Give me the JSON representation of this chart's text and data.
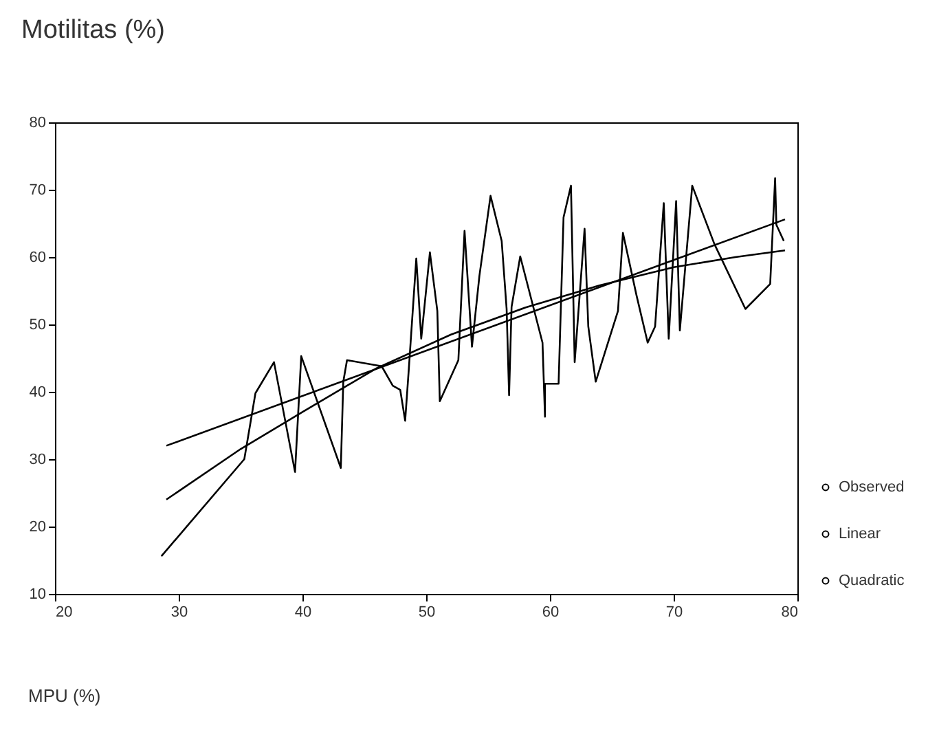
{
  "chart_data": {
    "type": "line",
    "ylabel": "Motilitas (%)",
    "xlabel": "MPU (%)",
    "xlim": [
      20,
      80
    ],
    "ylim": [
      10,
      80
    ],
    "xticks": [
      20,
      30,
      40,
      50,
      60,
      70,
      80
    ],
    "yticks": [
      10,
      20,
      30,
      40,
      50,
      60,
      70,
      80
    ],
    "grid": false,
    "legend": "bottom right",
    "marker": "none",
    "line_style": "solid",
    "series": [
      {
        "name": "Observed",
        "color": "#000000",
        "x": [
          28.6,
          35.3,
          36.2,
          37.7,
          39.4,
          39.9,
          43.1,
          43.3,
          43.6,
          46.4,
          47.3,
          47.9,
          48.3,
          48.6,
          49.2,
          49.6,
          50.3,
          50.9,
          51.1,
          52.6,
          53.1,
          53.7,
          54.3,
          55.2,
          56.1,
          56.5,
          56.7,
          56.9,
          57.6,
          59.4,
          59.6,
          59.6,
          60.7,
          61.1,
          61.7,
          62,
          62.8,
          63.1,
          63.7,
          65.5,
          65.9,
          67,
          67.9,
          68.5,
          69.2,
          69.6,
          70.2,
          70.5,
          71.5,
          73.3,
          75.8,
          77.8,
          78.2,
          78.3,
          78.9
        ],
        "values": [
          15.6,
          30,
          39.8,
          44.4,
          28.1,
          45.3,
          28.7,
          41.5,
          44.7,
          43.8,
          40.9,
          40.3,
          35.7,
          43.5,
          59.8,
          47.9,
          60.7,
          52,
          38.6,
          44.7,
          63.9,
          46.7,
          57.2,
          69.1,
          62.4,
          52.3,
          39.5,
          52.6,
          60.1,
          47.3,
          36.3,
          41.2,
          41.2,
          65.9,
          70.6,
          44.4,
          64.2,
          49.7,
          41.5,
          52,
          63.6,
          54.3,
          47.3,
          49.7,
          68,
          47.9,
          68.3,
          49.1,
          70.6,
          61.9,
          52.3,
          56,
          71.7,
          64.8,
          62.4
        ]
      },
      {
        "name": "Linear",
        "color": "#000000",
        "x": [
          29,
          79
        ],
        "values": [
          32,
          65.6
        ]
      },
      {
        "name": "Quadratic",
        "color": "#000000",
        "x": [
          29,
          35,
          40,
          46,
          52,
          58,
          64,
          70,
          75,
          79
        ],
        "values": [
          24,
          31.5,
          37,
          43.5,
          48.5,
          52.5,
          55.8,
          58.5,
          60,
          61
        ]
      }
    ]
  }
}
